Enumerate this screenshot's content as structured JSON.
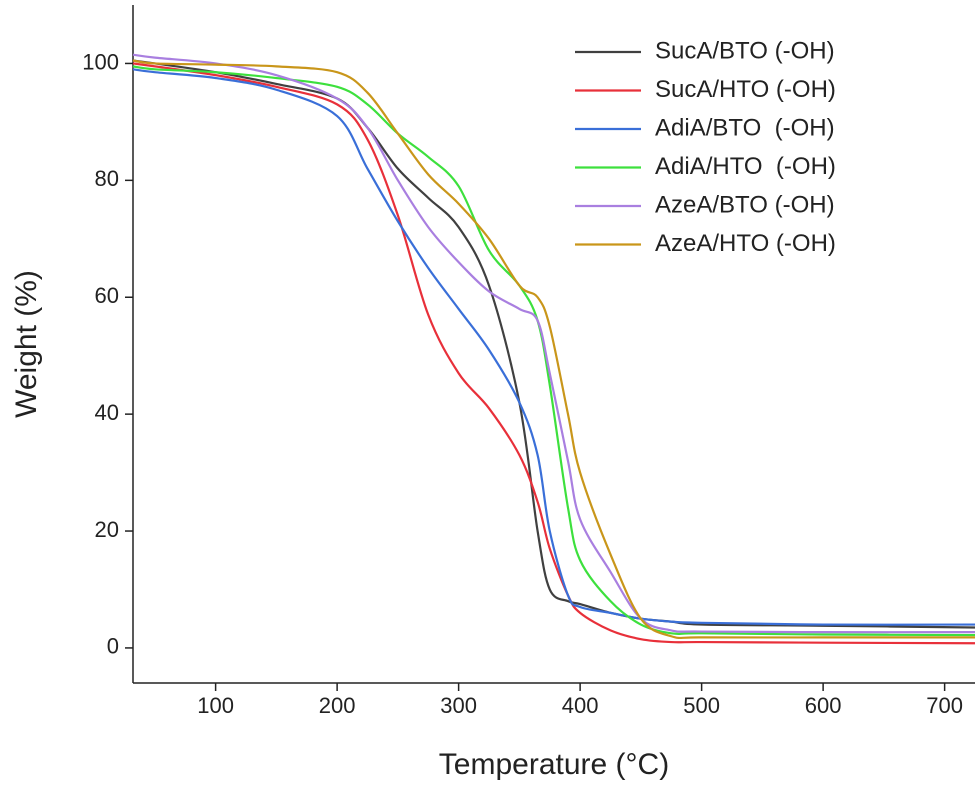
{
  "chart_data": {
    "type": "line",
    "x_label": "Temperature (°C)",
    "y_label": "Weight (%)",
    "x": [
      32,
      50,
      100,
      150,
      200,
      225,
      250,
      275,
      300,
      325,
      350,
      365,
      375,
      390,
      400,
      425,
      450,
      475,
      500,
      600,
      725
    ],
    "xlim": [
      32,
      725
    ],
    "xticks": [
      100,
      200,
      300,
      400,
      500,
      600,
      700
    ],
    "ylim": [
      -6,
      110
    ],
    "yticks": [
      0,
      20,
      40,
      60,
      80,
      100
    ],
    "legend": "top-right",
    "series": [
      {
        "name": "SucA/BTO (-OH)",
        "color": "#404040",
        "values": [
          100.5,
          100,
          98.5,
          96.5,
          94,
          89,
          82,
          77,
          72,
          62,
          42,
          20,
          10,
          8,
          7.5,
          6,
          5,
          4.5,
          4,
          3.8,
          3.5
        ]
      },
      {
        "name": "SucA/HTO (-OH)",
        "color": "#e8303a",
        "values": [
          100,
          99.5,
          98,
          96,
          93,
          87,
          74,
          57,
          47,
          41,
          33,
          25,
          17,
          9,
          6,
          3,
          1.5,
          1,
          1,
          0.9,
          0.8
        ]
      },
      {
        "name": "AdiA/BTO  (-OH)",
        "color": "#3a6fd8",
        "values": [
          99,
          98.5,
          97.5,
          95.5,
          91,
          82,
          73,
          65,
          58,
          51,
          42,
          33,
          20,
          9,
          7,
          6,
          5,
          4.5,
          4.3,
          4,
          4
        ]
      },
      {
        "name": "AdiA/HTO  (-OH)",
        "color": "#3de03d",
        "values": [
          99.5,
          99,
          98.5,
          97.5,
          96,
          93,
          88,
          84,
          79,
          68,
          62,
          56,
          45,
          24,
          15,
          8,
          4,
          2.5,
          2.5,
          2.3,
          2.2
        ]
      },
      {
        "name": "AzeA/BTO (-OH)",
        "color": "#a97fe0",
        "values": [
          101.5,
          101,
          100,
          98,
          94,
          89,
          80,
          72,
          66,
          61,
          58,
          56,
          47,
          32,
          22,
          13,
          5,
          3,
          2.8,
          2.7,
          2.7
        ]
      },
      {
        "name": "AzeA/HTO (-OH)",
        "color": "#c9961a",
        "values": [
          100.5,
          100,
          99.8,
          99.5,
          98.5,
          95,
          88,
          81,
          76,
          70,
          62,
          60,
          55,
          40,
          30,
          16,
          5,
          2,
          1.8,
          1.8,
          1.8
        ]
      }
    ]
  }
}
